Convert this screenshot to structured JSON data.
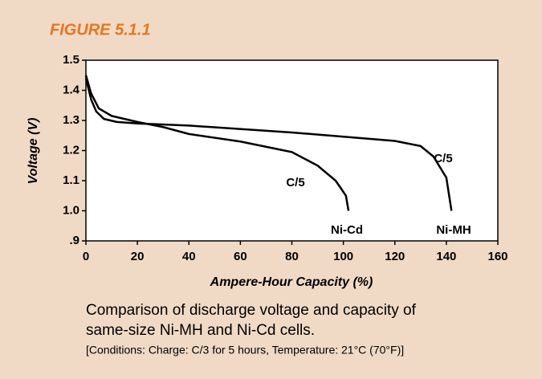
{
  "chart_data": {
    "type": "line",
    "figure_label": "FIGURE 5.1.1",
    "xlabel": "Ampere-Hour Capacity (%)",
    "ylabel": "Voltage (V)",
    "caption": [
      "Comparison of discharge voltage and capacity of",
      "same-size Ni-MH and Ni-Cd cells."
    ],
    "conditions": "[Conditions: Charge: C/3 for 5 hours, Temperature: 21°C (70°F)]",
    "xlim": [
      0,
      160
    ],
    "xticks": [
      0,
      20,
      40,
      60,
      80,
      100,
      120,
      140,
      160
    ],
    "ylim": [
      0.9,
      1.5
    ],
    "yticks": [
      {
        "value": 0.9,
        "label": ".9"
      },
      {
        "value": 1,
        "label": "1.0"
      },
      1.1,
      1.2,
      1.3,
      1.4,
      1.5
    ],
    "series": [
      {
        "name": "Ni-Cd",
        "color": "#000000",
        "x": [
          0,
          2,
          5,
          10,
          20,
          30,
          40,
          60,
          80,
          90,
          97,
          101,
          102
        ],
        "values": [
          1.45,
          1.39,
          1.34,
          1.315,
          1.295,
          1.278,
          1.255,
          1.23,
          1.195,
          1.15,
          1.1,
          1.05,
          1.0
        ]
      },
      {
        "name": "Ni-MH",
        "color": "#000000",
        "x": [
          0,
          2,
          4,
          7,
          12,
          20,
          40,
          80,
          120,
          130,
          135,
          140,
          142
        ],
        "values": [
          1.44,
          1.37,
          1.33,
          1.305,
          1.295,
          1.29,
          1.283,
          1.26,
          1.232,
          1.215,
          1.18,
          1.11,
          1.0
        ]
      }
    ],
    "annotations": [
      "C/5",
      "C/5"
    ]
  }
}
